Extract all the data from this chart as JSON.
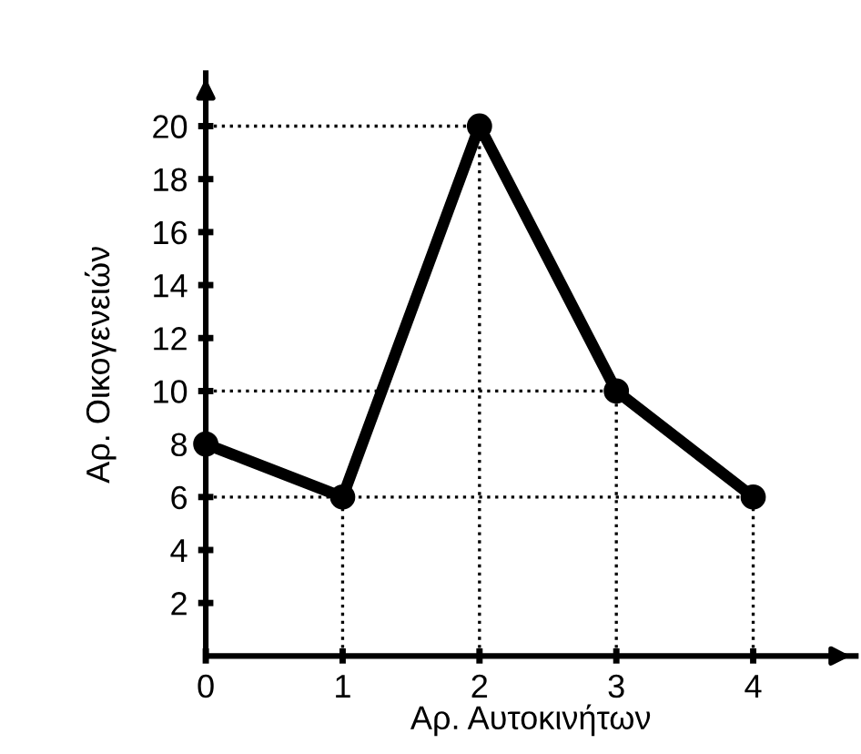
{
  "chart_data": {
    "type": "line",
    "xlabel": "Αρ. Αυτοκινήτων",
    "ylabel": "Αρ. Οικογενειών",
    "x": [
      0,
      1,
      2,
      3,
      4
    ],
    "series": [
      {
        "color": "#000000",
        "values": [
          8,
          6,
          20,
          10,
          6
        ]
      }
    ],
    "marker": "circle",
    "line_style": "solid",
    "grid": false,
    "legend": false,
    "xlim": [
      0,
      4.75
    ],
    "ylim": [
      0,
      22
    ],
    "xticks": [
      0,
      1,
      2,
      3,
      4
    ],
    "yticks": [
      2,
      4,
      6,
      8,
      10,
      12,
      14,
      16,
      18,
      20
    ],
    "ref_lines": [
      {
        "axis": "y",
        "value": 20,
        "line_style": "dotted"
      },
      {
        "axis": "y",
        "value": 10,
        "line_style": "dotted"
      },
      {
        "axis": "y",
        "value": 6,
        "line_style": "dotted"
      },
      {
        "axis": "x",
        "value": 1,
        "line_style": "dotted"
      },
      {
        "axis": "x",
        "value": 2,
        "line_style": "dotted"
      },
      {
        "axis": "x",
        "value": 3,
        "line_style": "dotted"
      },
      {
        "axis": "x",
        "value": 4,
        "line_style": "dotted"
      }
    ]
  }
}
